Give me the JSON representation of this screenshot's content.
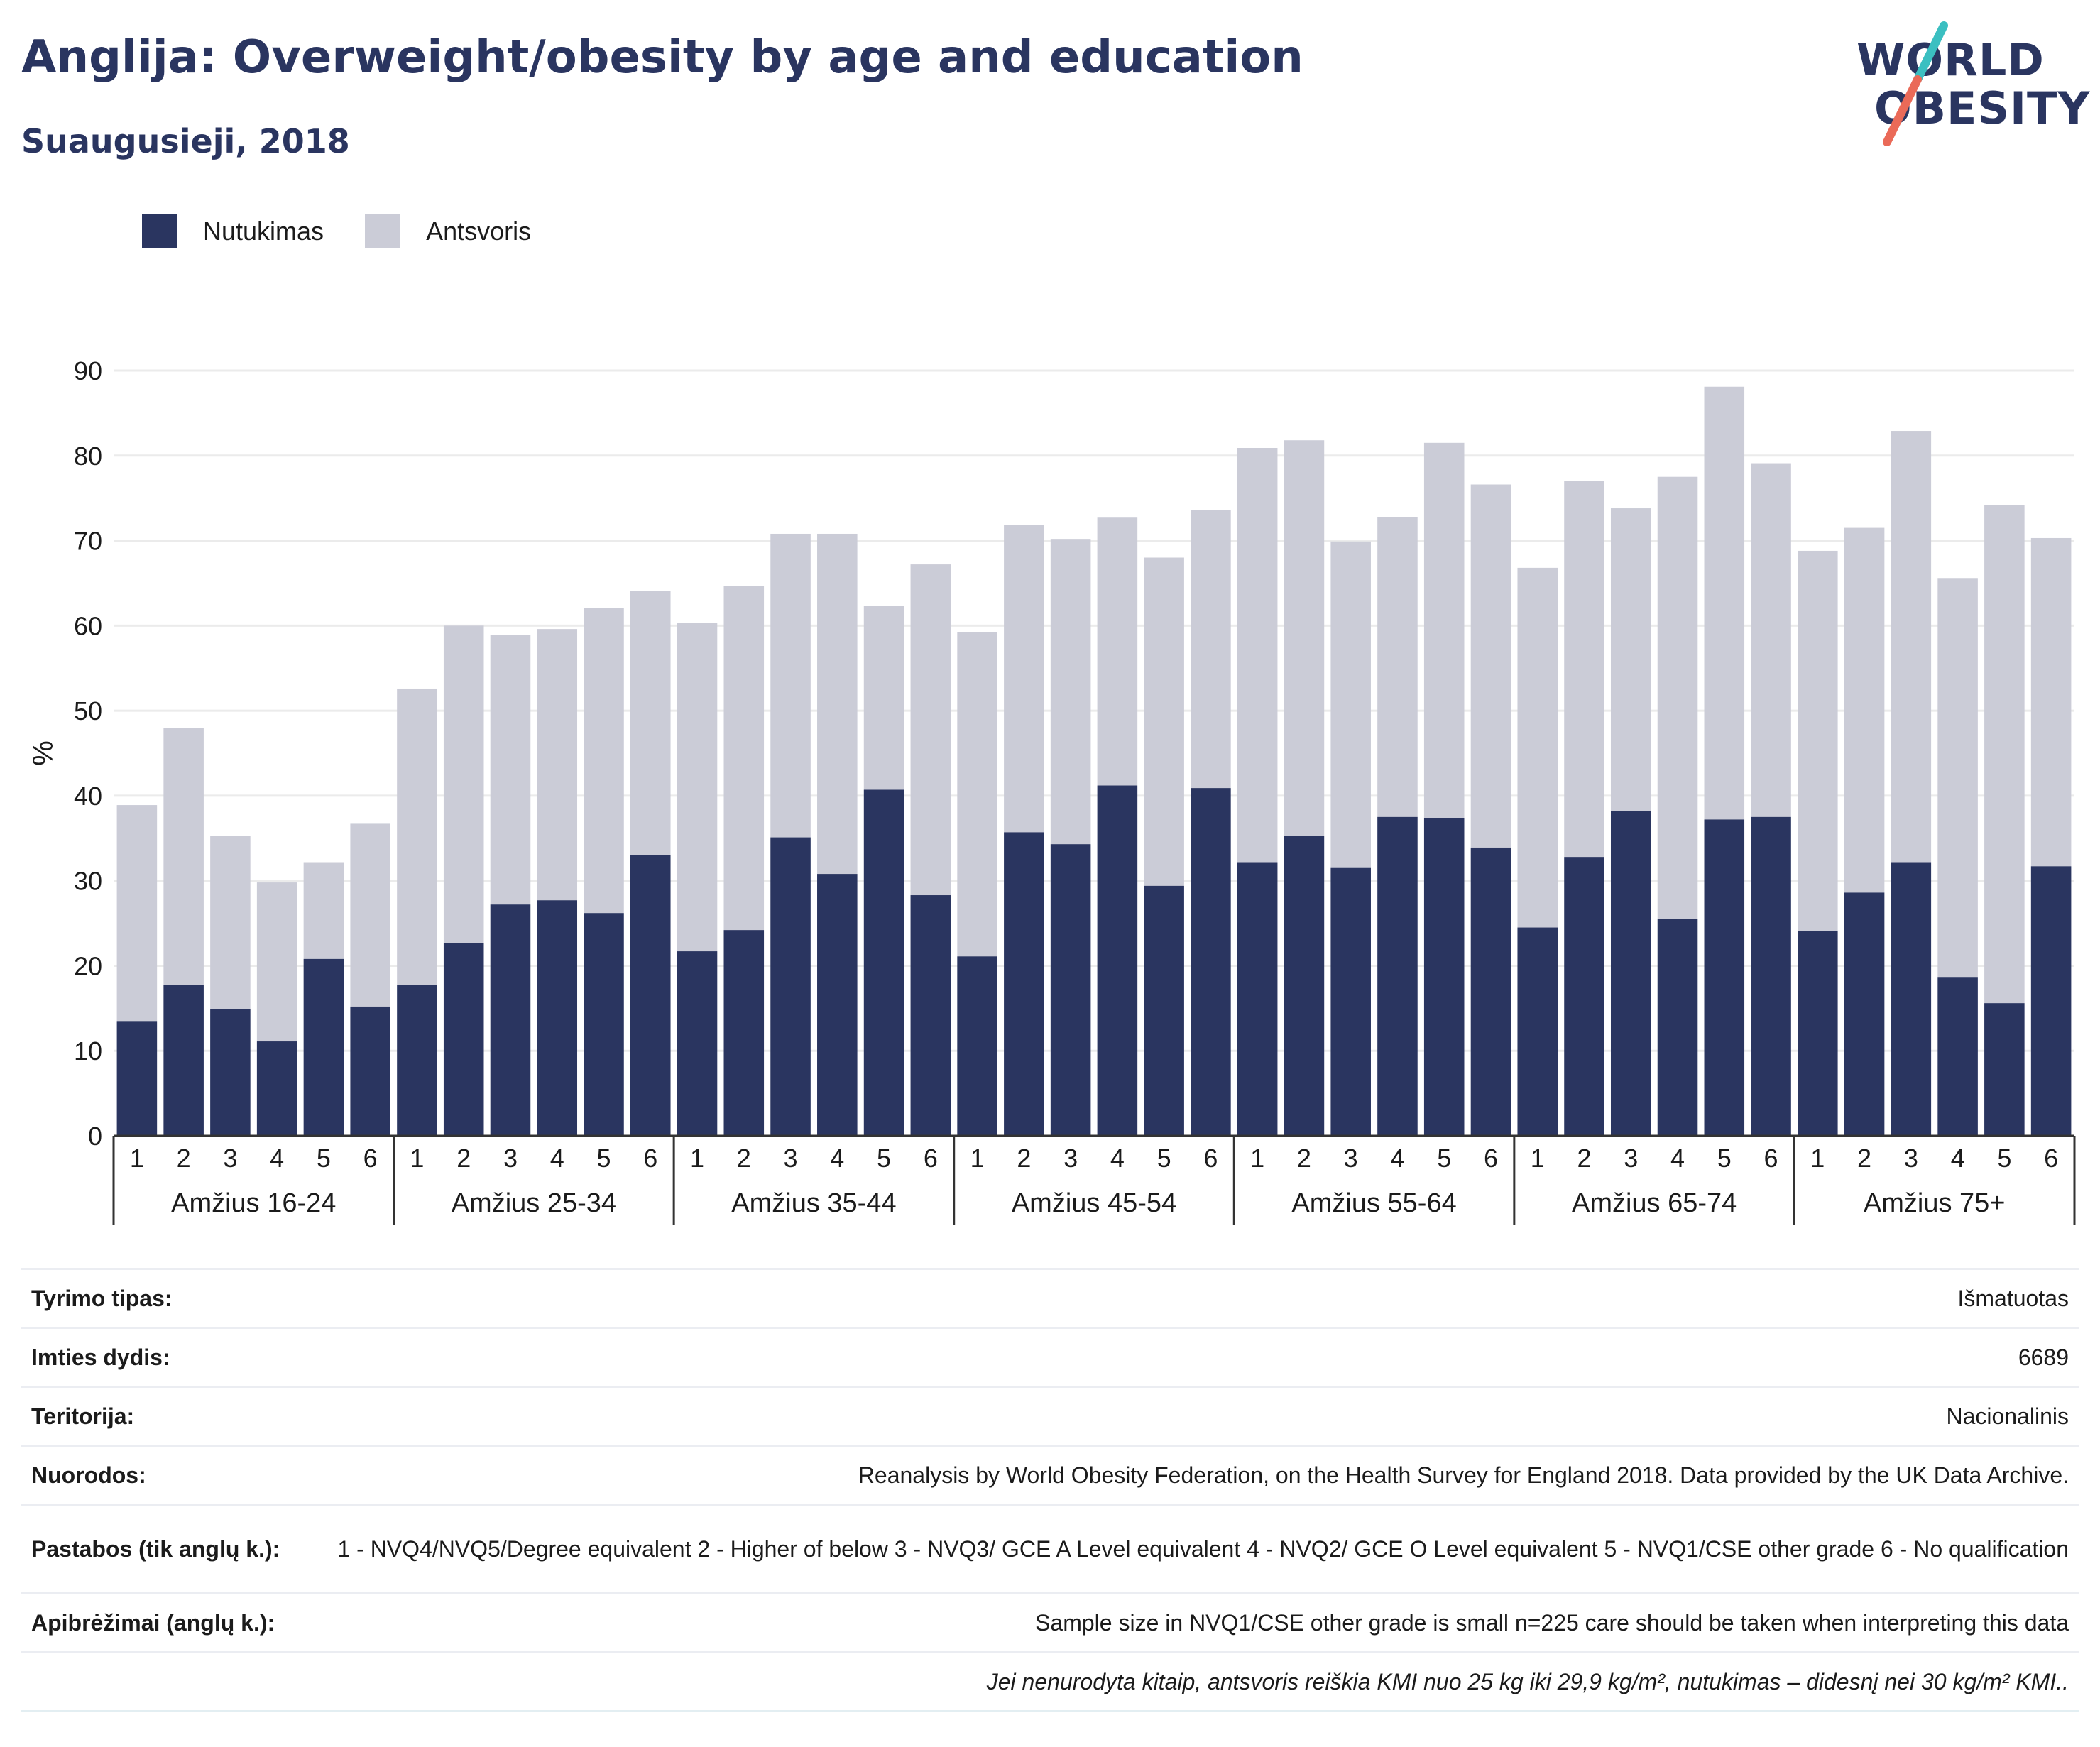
{
  "header": {
    "title": "Anglija: Overweight/obesity by age and education",
    "subtitle": "Suaugusieji, 2018"
  },
  "logo": {
    "line1": "WORLD",
    "line2": "OBESITY",
    "slash_colors": [
      "#3bbfc1",
      "#ea6a58"
    ]
  },
  "colors": {
    "obesity": "#2a3560",
    "overweight": "#cbccd7",
    "grid": "#ebebeb",
    "axis": "#333333"
  },
  "chart_data": {
    "type": "bar",
    "stacked": true,
    "ylabel": "%",
    "ylim": [
      0,
      90
    ],
    "yticks": [
      0,
      10,
      20,
      30,
      40,
      50,
      60,
      70,
      80,
      90
    ],
    "grid": true,
    "legend_position": "top-left",
    "groups": [
      "Amžius 16-24",
      "Amžius 25-34",
      "Amžius 35-44",
      "Amžius 45-54",
      "Amžius 55-64",
      "Amžius 65-74",
      "Amžius 75+"
    ],
    "categories": [
      "1",
      "2",
      "3",
      "4",
      "5",
      "6"
    ],
    "series": [
      {
        "name": "Nutukimas",
        "values": [
          [
            13.5,
            17.7,
            14.9,
            11.1,
            20.8,
            15.2
          ],
          [
            17.7,
            22.7,
            27.2,
            27.7,
            26.2,
            33.0
          ],
          [
            21.7,
            24.2,
            35.1,
            30.8,
            40.7,
            28.3
          ],
          [
            21.1,
            35.7,
            34.3,
            41.2,
            29.4,
            40.9
          ],
          [
            32.1,
            35.3,
            31.5,
            37.5,
            37.4,
            33.9
          ],
          [
            24.5,
            32.8,
            38.2,
            25.5,
            37.2,
            37.5
          ],
          [
            24.1,
            28.6,
            32.1,
            18.6,
            15.6,
            31.7
          ]
        ]
      },
      {
        "name": "Antsvoris",
        "values": [
          [
            25.4,
            30.3,
            20.4,
            18.7,
            11.3,
            21.5
          ],
          [
            34.9,
            37.3,
            31.7,
            31.9,
            35.9,
            31.1
          ],
          [
            38.6,
            40.5,
            35.7,
            40.0,
            21.6,
            38.9
          ],
          [
            38.1,
            36.1,
            35.9,
            31.5,
            38.6,
            32.7
          ],
          [
            48.8,
            46.5,
            38.4,
            35.3,
            44.1,
            42.7
          ],
          [
            42.3,
            44.2,
            35.6,
            52.0,
            50.9,
            41.6
          ],
          [
            44.7,
            42.9,
            50.8,
            47.0,
            58.6,
            38.6
          ]
        ]
      }
    ]
  },
  "info_table": [
    {
      "label": "Tyrimo tipas:",
      "value": "Išmatuotas"
    },
    {
      "label": "Imties dydis:",
      "value": "6689"
    },
    {
      "label": "Teritorija:",
      "value": "Nacionalinis"
    },
    {
      "label": "Nuorodos:",
      "value": "Reanalysis by World Obesity Federation, on the Health Survey for England 2018. Data provided by the UK Data Archive."
    },
    {
      "label": "Pastabos (tik anglų k.):",
      "value": "1 - NVQ4/NVQ5/Degree equivalent 2 - Higher of below 3 - NVQ3/ GCE A Level equivalent 4 - NVQ2/ GCE O Level equivalent 5 - NVQ1/CSE other grade 6 - No qualification"
    },
    {
      "label": "Apibrėžimai (anglų k.):",
      "value": "Sample size in NVQ1/CSE other grade is small n=225 care should be taken when interpreting this data"
    },
    {
      "label": "",
      "value": "Jei nenurodyta kitaip, antsvoris reiškia KMI nuo 25 kg iki 29,9 kg/m², nutukimas – didesnį nei 30 kg/m² KMI.."
    }
  ]
}
